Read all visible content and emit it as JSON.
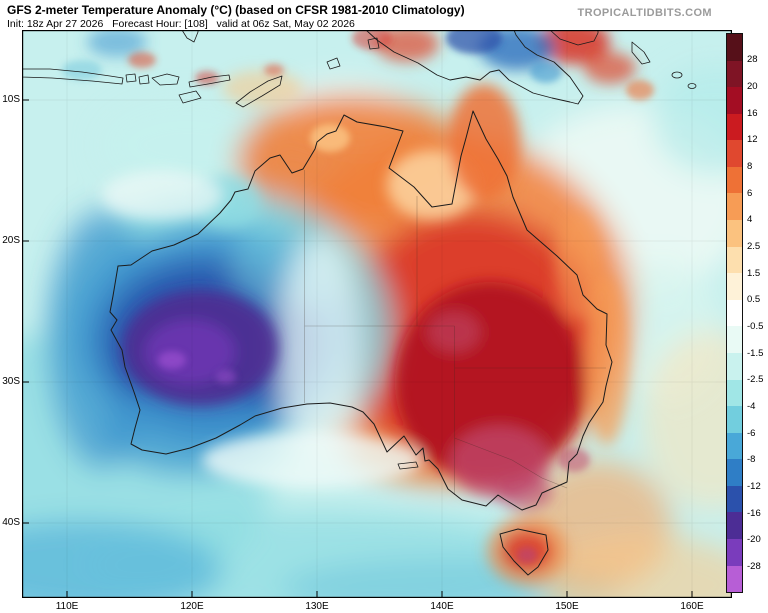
{
  "header": {
    "title": "GFS 2-meter Temperature Anomaly (°C) (based on CFSR 1981-2010 Climatology)",
    "init_line": "Init: 18z Apr 27 2026   Forecast Hour: [108]   valid at 06z Sat, May 02 2026",
    "init": "18z Apr 27 2026",
    "forecast_hour": "108",
    "valid": "06z Sat, May 02 2026",
    "watermark": "TROPICALTIDBITS.COM"
  },
  "map": {
    "lat_ticks": [
      "10S",
      "20S",
      "30S",
      "40S"
    ],
    "lon_ticks": [
      "110E",
      "120E",
      "130E",
      "140E",
      "150E",
      "160E"
    ]
  },
  "colorbar": {
    "labels": [
      "28",
      "20",
      "16",
      "12",
      "8",
      "6",
      "4",
      "2.5",
      "1.5",
      "0.5",
      "-0.5",
      "-1.5",
      "-2.5",
      "-4",
      "-6",
      "-8",
      "-12",
      "-16",
      "-20",
      "-28"
    ],
    "colors": [
      "#561019",
      "#7f1425",
      "#a30d23",
      "#cb1b20",
      "#e0482f",
      "#ee7136",
      "#f79c55",
      "#fbc27f",
      "#fddfae",
      "#fef2d8",
      "#ffffff",
      "#e9faf5",
      "#c9f2ee",
      "#a0e6e6",
      "#72cede",
      "#49a8d8",
      "#2f7ec6",
      "#2b51ac",
      "#4c2d95",
      "#7a3cbc",
      "#b75ed6"
    ]
  },
  "chart_data": {
    "type": "heatmap",
    "title": "GFS 2-meter Temperature Anomaly (°C) (based on CFSR 1981-2010 Climatology)",
    "units": "°C",
    "lat_axis": [
      "10S",
      "20S",
      "30S",
      "40S"
    ],
    "lon_axis": [
      "110E",
      "120E",
      "130E",
      "140E",
      "150E",
      "160E"
    ],
    "scale_breaks": [
      28,
      20,
      16,
      12,
      8,
      6,
      4,
      2.5,
      1.5,
      0.5,
      -0.5,
      -1.5,
      -2.5,
      -4,
      -6,
      -8,
      -12,
      -16,
      -20,
      -28
    ],
    "regions": [
      {
        "area": "Western Australia interior cold core",
        "anomaly_c": -18
      },
      {
        "area": "Western Australia broad cold pool",
        "anomaly_c": -10
      },
      {
        "area": "Ocean off WA west coast",
        "anomaly_c": -6
      },
      {
        "area": "Southern Ocean / SW Indian Ocean",
        "anomaly_c": -2.5
      },
      {
        "area": "Central Australia / western Queensland",
        "anomaly_c": 10
      },
      {
        "area": "SA-NSW-VIC border hot core",
        "anomaly_c": 18
      },
      {
        "area": "Victoria / southern NSW",
        "anomaly_c": 14
      },
      {
        "area": "Tasmania",
        "anomaly_c": 8
      },
      {
        "area": "Top End NT / Cape York",
        "anomaly_c": 5
      },
      {
        "area": "Tasman Sea southeast of Australia",
        "anomaly_c": 3
      },
      {
        "area": "Coral Sea",
        "anomaly_c": -0.5
      },
      {
        "area": "New Britain / NE Papua New Guinea",
        "anomaly_c": 10
      },
      {
        "area": "Papua New Guinea highlands",
        "anomaly_c": -8
      }
    ]
  }
}
